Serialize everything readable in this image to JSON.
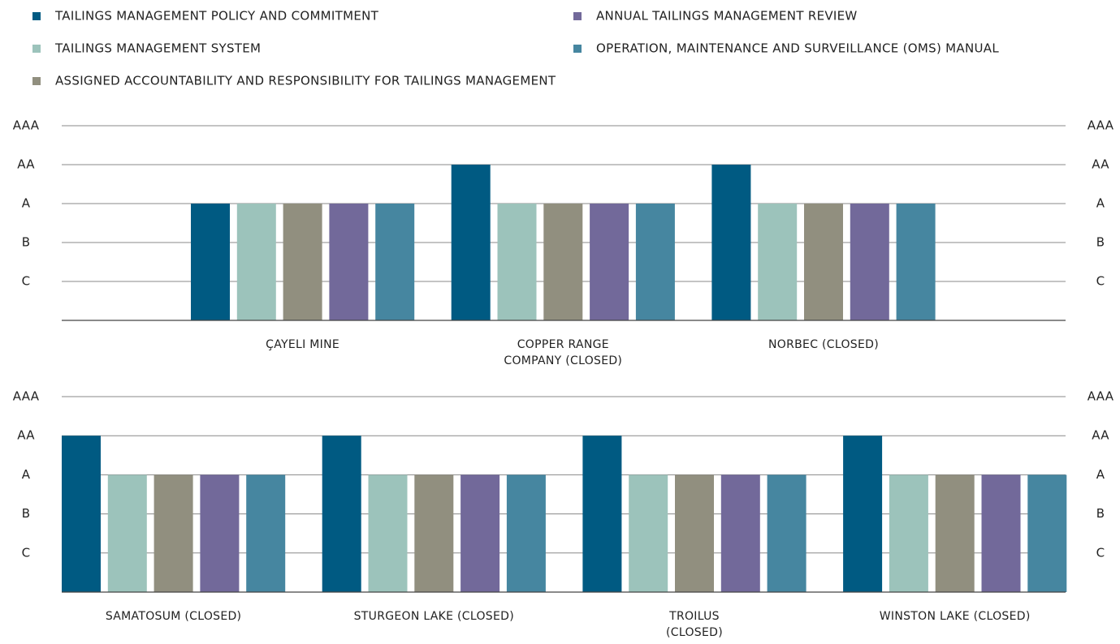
{
  "chart_data": {
    "type": "bar",
    "categories": [
      "ÇAYELI MINE",
      "COPPER RANGE\nCOMPANY (CLOSED)",
      "NORBEC (CLOSED)",
      "SAMATOSUM (CLOSED)",
      "STURGEON LAKE (CLOSED)",
      "TROILUS\n(CLOSED)",
      "WINSTON LAKE (CLOSED)"
    ],
    "series": [
      {
        "name": "TAILINGS MANAGEMENT POLICY AND COMMITMENT",
        "color": "#005a82",
        "values": [
          3,
          4,
          4,
          4,
          4,
          4,
          4
        ]
      },
      {
        "name": "TAILINGS MANAGEMENT SYSTEM",
        "color": "#9cc3bb",
        "values": [
          3,
          3,
          3,
          3,
          3,
          3,
          3
        ]
      },
      {
        "name": "ASSIGNED ACCOUNTABILITY AND RESPONSIBILITY FOR TAILINGS MANAGEMENT",
        "color": "#918f7f",
        "values": [
          3,
          3,
          3,
          3,
          3,
          3,
          3
        ]
      },
      {
        "name": "ANNUAL TAILINGS MANAGEMENT REVIEW",
        "color": "#72699a",
        "values": [
          3,
          3,
          3,
          3,
          3,
          3,
          3
        ]
      },
      {
        "name": "OPERATION, MAINTENANCE AND SURVEILLANCE (OMS) MANUAL",
        "color": "#4686a0",
        "values": [
          3,
          3,
          3,
          3,
          3,
          3,
          3
        ]
      }
    ],
    "ylim": [
      0,
      5
    ],
    "yticks": [
      {
        "value": 1,
        "label": "C"
      },
      {
        "value": 2,
        "label": "B"
      },
      {
        "value": 3,
        "label": "A"
      },
      {
        "value": 4,
        "label": "AA"
      },
      {
        "value": 5,
        "label": "AAA"
      }
    ],
    "grid": true
  }
}
